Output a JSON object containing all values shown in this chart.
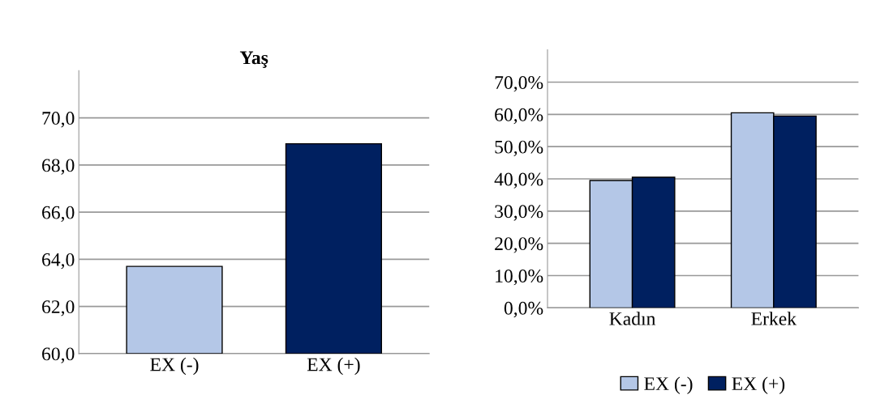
{
  "chart_data": [
    {
      "type": "bar",
      "title": "Yaş",
      "categories": [
        "EX (-)",
        "EX (+)"
      ],
      "values": [
        63.7,
        68.9
      ],
      "colors": [
        "#b4c7e7",
        "#002060"
      ],
      "ylim": [
        60,
        72
      ],
      "yticks": [
        {
          "value": 60,
          "label": "60,0"
        },
        {
          "value": 62,
          "label": "62,0"
        },
        {
          "value": 64,
          "label": "64,0"
        },
        {
          "value": 66,
          "label": "66,0"
        },
        {
          "value": 68,
          "label": "68,0"
        },
        {
          "value": 70,
          "label": "70,0"
        }
      ],
      "grid": "y"
    },
    {
      "type": "bar",
      "categories": [
        "Kadın",
        "Erkek"
      ],
      "series": [
        {
          "name": "EX (-)",
          "color": "#b4c7e7",
          "values": [
            39.5,
            60.5
          ]
        },
        {
          "name": "EX (+)",
          "color": "#002060",
          "values": [
            40.5,
            59.5
          ]
        }
      ],
      "ylim": [
        0,
        80
      ],
      "yticks": [
        {
          "value": 0,
          "label": "0,0%"
        },
        {
          "value": 10,
          "label": "10,0%"
        },
        {
          "value": 20,
          "label": "20,0%"
        },
        {
          "value": 30,
          "label": "30,0%"
        },
        {
          "value": 40,
          "label": "40,0%"
        },
        {
          "value": 50,
          "label": "50,0%"
        },
        {
          "value": 60,
          "label": "60,0%"
        },
        {
          "value": 70,
          "label": "70,0%"
        }
      ],
      "grid": "y",
      "legend": "bottom"
    }
  ]
}
